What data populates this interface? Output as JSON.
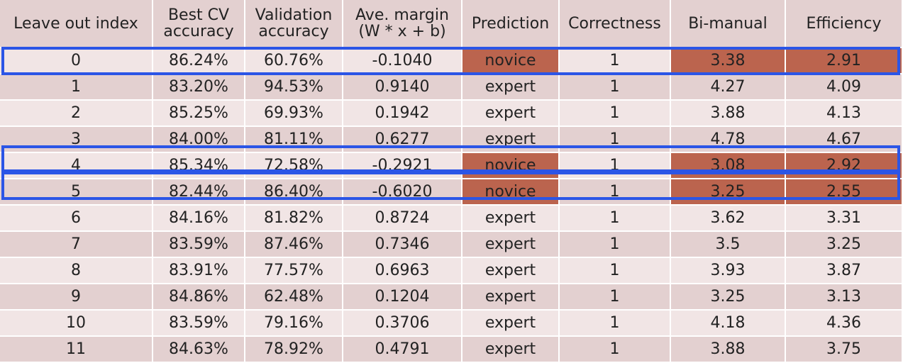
{
  "header": {
    "col0": "Leave out index",
    "col1_line1": "Best CV",
    "col1_line2": "accuracy",
    "col2_line1": "Validation",
    "col2_line2": "accuracy",
    "col3_line1": "Ave. margin",
    "col3_line2": "(W * x + b)",
    "col4": "Prediction",
    "col5": "Correctness",
    "col6": "Bi-manual",
    "col7": "Efficiency"
  },
  "rows": [
    {
      "idx": "0",
      "cv": "86.24%",
      "val": "60.76%",
      "margin": "-0.1040",
      "pred": "novice",
      "corr": "1",
      "bim": "3.38",
      "eff": "2.91"
    },
    {
      "idx": "1",
      "cv": "83.20%",
      "val": "94.53%",
      "margin": "0.9140",
      "pred": "expert",
      "corr": "1",
      "bim": "4.27",
      "eff": "4.09"
    },
    {
      "idx": "2",
      "cv": "85.25%",
      "val": "69.93%",
      "margin": "0.1942",
      "pred": "expert",
      "corr": "1",
      "bim": "3.88",
      "eff": "4.13"
    },
    {
      "idx": "3",
      "cv": "84.00%",
      "val": "81.11%",
      "margin": "0.6277",
      "pred": "expert",
      "corr": "1",
      "bim": "4.78",
      "eff": "4.67"
    },
    {
      "idx": "4",
      "cv": "85.34%",
      "val": "72.58%",
      "margin": "-0.2921",
      "pred": "novice",
      "corr": "1",
      "bim": "3.08",
      "eff": "2.92"
    },
    {
      "idx": "5",
      "cv": "82.44%",
      "val": "86.40%",
      "margin": "-0.6020",
      "pred": "novice",
      "corr": "1",
      "bim": "3.25",
      "eff": "2.55"
    },
    {
      "idx": "6",
      "cv": "84.16%",
      "val": "81.82%",
      "margin": "0.8724",
      "pred": "expert",
      "corr": "1",
      "bim": "3.62",
      "eff": "3.31"
    },
    {
      "idx": "7",
      "cv": "83.59%",
      "val": "87.46%",
      "margin": "0.7346",
      "pred": "expert",
      "corr": "1",
      "bim": "3.5",
      "eff": "3.25"
    },
    {
      "idx": "8",
      "cv": "83.91%",
      "val": "77.57%",
      "margin": "0.6963",
      "pred": "expert",
      "corr": "1",
      "bim": "3.93",
      "eff": "3.87"
    },
    {
      "idx": "9",
      "cv": "84.86%",
      "val": "62.48%",
      "margin": "0.1204",
      "pred": "expert",
      "corr": "1",
      "bim": "3.25",
      "eff": "3.13"
    },
    {
      "idx": "10",
      "cv": "83.59%",
      "val": "79.16%",
      "margin": "0.3706",
      "pred": "expert",
      "corr": "1",
      "bim": "4.18",
      "eff": "4.36"
    },
    {
      "idx": "11",
      "cv": "84.63%",
      "val": "78.92%",
      "margin": "0.4791",
      "pred": "expert",
      "corr": "1",
      "bim": "3.88",
      "eff": "3.75"
    }
  ],
  "colors": {
    "highlight": "#bb644e",
    "row_light": "#f1e5e5",
    "row_dark": "#e3d0d0",
    "box_border": "#2b55e6"
  }
}
